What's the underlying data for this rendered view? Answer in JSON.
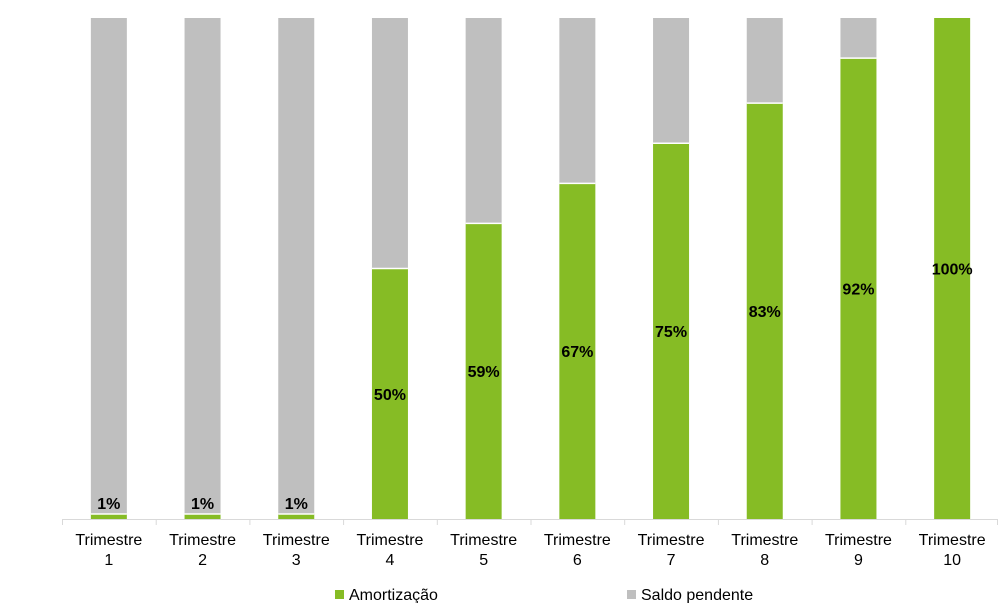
{
  "chart_data": {
    "type": "bar",
    "stacked": true,
    "percent_stacked": true,
    "categories": [
      [
        "Trimestre",
        "1"
      ],
      [
        "Trimestre",
        "2"
      ],
      [
        "Trimestre",
        "3"
      ],
      [
        "Trimestre",
        "4"
      ],
      [
        "Trimestre",
        "5"
      ],
      [
        "Trimestre",
        "6"
      ],
      [
        "Trimestre",
        "7"
      ],
      [
        "Trimestre",
        "8"
      ],
      [
        "Trimestre",
        "9"
      ],
      [
        "Trimestre",
        "10"
      ]
    ],
    "series": [
      {
        "name": "Amortização",
        "color": "#86BC25",
        "values": [
          1,
          1,
          1,
          50,
          59,
          67,
          75,
          83,
          92,
          100
        ],
        "labels": [
          "1%",
          "1%",
          "1%",
          "50%",
          "59%",
          "67%",
          "75%",
          "83%",
          "92%",
          "100%"
        ]
      },
      {
        "name": "Saldo pendente",
        "color": "#BFBFBF",
        "values": [
          99,
          99,
          99,
          50,
          41,
          33,
          25,
          17,
          8,
          0
        ]
      }
    ],
    "ylim": [
      0,
      100
    ],
    "grid": false,
    "legend": "bottom"
  }
}
